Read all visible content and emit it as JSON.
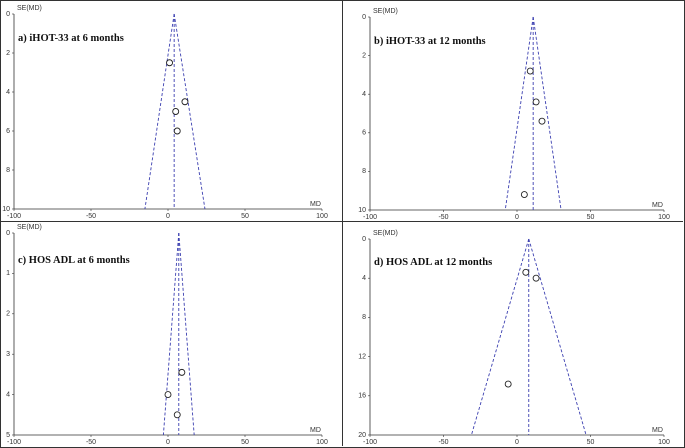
{
  "chart_data": [
    {
      "type": "scatter",
      "title": "a) iHOT-33 at 6 months",
      "xlabel": "MD",
      "ylabel": "SE(MD)",
      "xlim": [
        -100,
        100
      ],
      "ylim": [
        0,
        10
      ],
      "y_inverted": true,
      "x_ticks": [
        -100,
        -50,
        0,
        50,
        100
      ],
      "y_ticks": [
        0,
        2,
        4,
        6,
        8,
        10
      ],
      "pooled_md": 4,
      "funnel_apex_se": 0,
      "funnel_base_se": 10,
      "funnel_base_x": [
        -15,
        24
      ],
      "points": [
        {
          "x": 1,
          "y": 2.5
        },
        {
          "x": 11,
          "y": 4.5
        },
        {
          "x": 5,
          "y": 5.0
        },
        {
          "x": 6,
          "y": 6.0
        }
      ]
    },
    {
      "type": "scatter",
      "title": "b) iHOT-33 at 12 months",
      "xlabel": "MD",
      "ylabel": "SE(MD)",
      "xlim": [
        -100,
        100
      ],
      "ylim": [
        0,
        10
      ],
      "y_inverted": true,
      "x_ticks": [
        -100,
        -50,
        0,
        50,
        100
      ],
      "y_ticks": [
        0,
        2,
        4,
        6,
        8,
        10
      ],
      "pooled_md": 11,
      "funnel_apex_se": 0,
      "funnel_base_se": 10,
      "funnel_base_x": [
        -8,
        30
      ],
      "points": [
        {
          "x": 9,
          "y": 2.8
        },
        {
          "x": 13,
          "y": 4.4
        },
        {
          "x": 17,
          "y": 5.4
        },
        {
          "x": 5,
          "y": 9.2
        }
      ]
    },
    {
      "type": "scatter",
      "title": "c) HOS ADL at 6 months",
      "xlabel": "MD",
      "ylabel": "SE(MD)",
      "xlim": [
        -100,
        100
      ],
      "ylim": [
        0,
        5
      ],
      "y_inverted": true,
      "x_ticks": [
        -100,
        -50,
        0,
        50,
        100
      ],
      "y_ticks": [
        0,
        1,
        2,
        3,
        4,
        5
      ],
      "pooled_md": 7,
      "funnel_apex_se": 0,
      "funnel_base_se": 5,
      "funnel_base_x": [
        -3,
        17
      ],
      "points": [
        {
          "x": 9,
          "y": 3.45
        },
        {
          "x": 0,
          "y": 4.0
        },
        {
          "x": 6,
          "y": 4.5
        }
      ]
    },
    {
      "type": "scatter",
      "title": "d) HOS ADL at 12 months",
      "xlabel": "MD",
      "ylabel": "SE(MD)",
      "xlim": [
        -100,
        100
      ],
      "ylim": [
        0,
        20
      ],
      "y_inverted": true,
      "x_ticks": [
        -100,
        -50,
        0,
        50,
        100
      ],
      "y_ticks": [
        0,
        4,
        8,
        12,
        16,
        20
      ],
      "pooled_md": 8,
      "funnel_apex_se": 0,
      "funnel_base_se": 20,
      "funnel_base_x": [
        -31,
        47
      ],
      "points": [
        {
          "x": 6,
          "y": 3.4
        },
        {
          "x": 13,
          "y": 4.0
        },
        {
          "x": -6,
          "y": 14.8
        }
      ]
    }
  ]
}
